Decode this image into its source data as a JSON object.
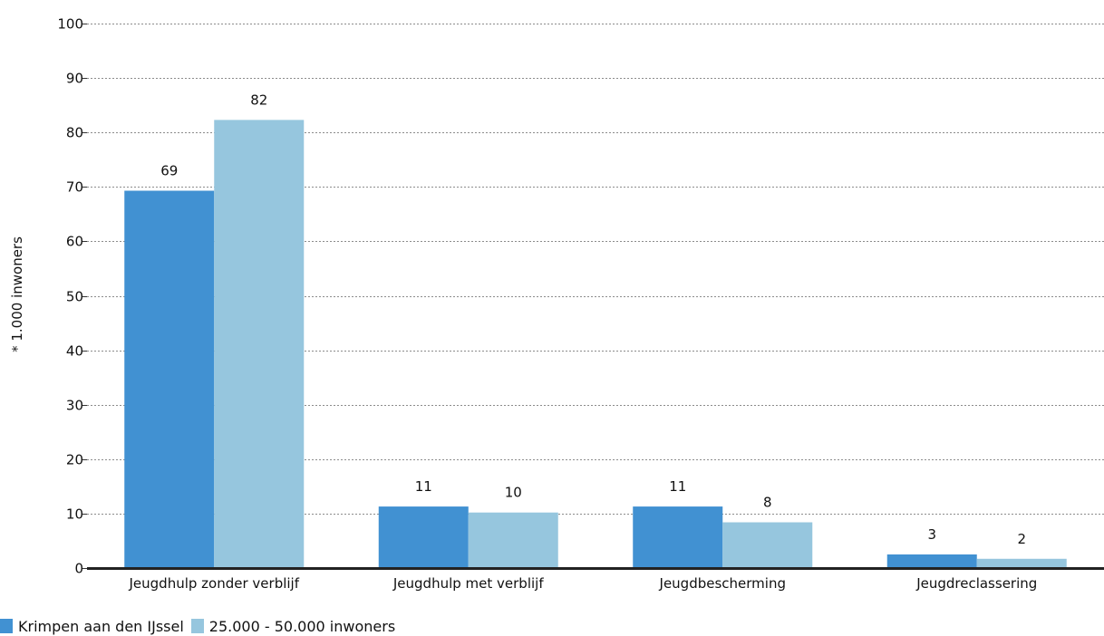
{
  "chart_data": {
    "type": "bar",
    "title": "",
    "xlabel": "",
    "ylabel": "* 1.000 inwoners",
    "ylim": [
      0,
      100
    ],
    "yticks": [
      0,
      10,
      20,
      30,
      40,
      50,
      60,
      70,
      80,
      90,
      100
    ],
    "grid": true,
    "legend_position": "bottom-left",
    "categories": [
      "Jeugdhulp zonder verblijf",
      "Jeugdhulp met verblijf",
      "Jeugdbescherming",
      "Jeugdreclassering"
    ],
    "series": [
      {
        "name": "Krimpen aan den IJssel",
        "color": "#4191d2",
        "values": [
          69.3,
          11.3,
          11.3,
          2.5
        ],
        "labels": [
          "69",
          "11",
          "11",
          "3"
        ]
      },
      {
        "name": "25.000 - 50.000 inwoners",
        "color": "#96c6de",
        "values": [
          82.3,
          10.2,
          8.4,
          1.7
        ],
        "labels": [
          "82",
          "10",
          "8",
          "2"
        ]
      }
    ]
  }
}
